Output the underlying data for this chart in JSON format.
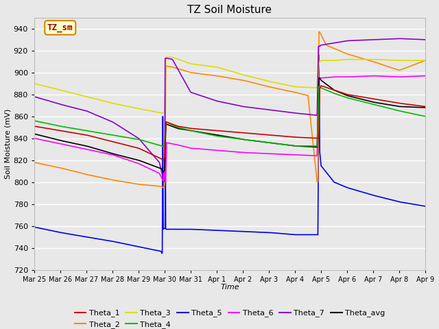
{
  "title": "TZ Soil Moisture",
  "xlabel": "Time",
  "ylabel": "Soil Moisture (mV)",
  "ylim": [
    720,
    950
  ],
  "yticks": [
    720,
    740,
    760,
    780,
    800,
    820,
    840,
    860,
    880,
    900,
    920,
    940
  ],
  "bg_color": "#e8e8e8",
  "grid_color": "#ffffff",
  "series_colors": {
    "Theta_1": "#cc0000",
    "Theta_2": "#ff8800",
    "Theta_3": "#dddd00",
    "Theta_4": "#00bb00",
    "Theta_5": "#0000ee",
    "Theta_6": "#ff00ff",
    "Theta_7": "#8800cc",
    "Theta_avg": "#000000"
  },
  "lw": 1.2,
  "x_labels": [
    "Mar 25",
    "Mar 26",
    "Mar 27",
    "Mar 28",
    "Mar 29",
    "Mar 30",
    "Mar 31",
    "Apr 1",
    "Apr 2",
    "Apr 3",
    "Apr 4",
    "Apr 5",
    "Apr 6",
    "Apr 7",
    "Apr 8",
    "Apr 9"
  ],
  "tzlabel": "TZ_sm",
  "tz_facecolor": "#ffffcc",
  "tz_edgecolor": "#cc8800",
  "tz_textcolor": "#990000"
}
